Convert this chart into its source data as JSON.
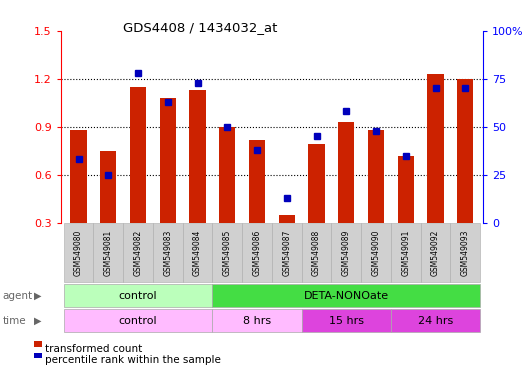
{
  "title": "GDS4408 / 1434032_at",
  "samples": [
    "GSM549080",
    "GSM549081",
    "GSM549082",
    "GSM549083",
    "GSM549084",
    "GSM549085",
    "GSM549086",
    "GSM549087",
    "GSM549088",
    "GSM549089",
    "GSM549090",
    "GSM549091",
    "GSM549092",
    "GSM549093"
  ],
  "red_values": [
    0.88,
    0.75,
    1.15,
    1.08,
    1.13,
    0.9,
    0.82,
    0.35,
    0.79,
    0.93,
    0.88,
    0.72,
    1.23,
    1.2
  ],
  "blue_percentile": [
    33,
    25,
    78,
    63,
    73,
    50,
    38,
    13,
    45,
    58,
    48,
    35,
    70,
    70
  ],
  "ylim_left": [
    0.3,
    1.5
  ],
  "ylim_right": [
    0,
    100
  ],
  "yticks_left": [
    0.3,
    0.6,
    0.9,
    1.2,
    1.5
  ],
  "ytick_labels_left": [
    "0.3",
    "0.6",
    "0.9",
    "1.2",
    "1.5"
  ],
  "yticks_right": [
    0,
    25,
    50,
    75,
    100
  ],
  "ytick_labels_right": [
    "0",
    "25",
    "50",
    "75",
    "100%"
  ],
  "agent_groups": [
    {
      "label": "control",
      "start": 0,
      "end": 5,
      "color": "#bbffbb"
    },
    {
      "label": "DETA-NONOate",
      "start": 5,
      "end": 14,
      "color": "#44dd44"
    }
  ],
  "time_groups": [
    {
      "label": "control",
      "start": 0,
      "end": 5,
      "color": "#ffbbff"
    },
    {
      "label": "8 hrs",
      "start": 5,
      "end": 8,
      "color": "#ffbbff"
    },
    {
      "label": "15 hrs",
      "start": 8,
      "end": 11,
      "color": "#dd44dd"
    },
    {
      "label": "24 hrs",
      "start": 11,
      "end": 14,
      "color": "#dd44dd"
    }
  ],
  "red_color": "#cc2200",
  "blue_color": "#0000bb",
  "bar_width": 0.55,
  "blue_marker_size": 5,
  "legend_labels": [
    "transformed count",
    "percentile rank within the sample"
  ],
  "baseline": 0.3,
  "grid_lines": [
    0.6,
    0.9,
    1.2
  ]
}
